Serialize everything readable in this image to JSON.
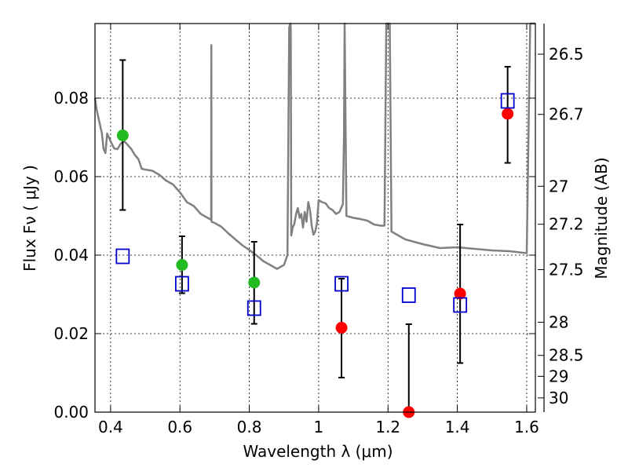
{
  "chart_data": {
    "type": "scatter",
    "xlabel": "Wavelength  λ (μm)",
    "ylabel": "Flux  Fν  ( μJy )",
    "ylabel_right": "Magnitude (AB)",
    "xlim": [
      0.355,
      1.625
    ],
    "ylim": [
      0.0,
      0.099
    ],
    "grid": true,
    "x_ticks": [
      0.4,
      0.6,
      0.8,
      1.0,
      1.2,
      1.4,
      1.6
    ],
    "x_tick_labels": [
      "0.4",
      "0.6",
      "0.8",
      "1",
      "1.2",
      "1.4",
      "1.6"
    ],
    "y_ticks": [
      0.0,
      0.02,
      0.04,
      0.06,
      0.08
    ],
    "y_tick_labels": [
      "0.00",
      "0.02",
      "0.04",
      "0.06",
      "0.08"
    ],
    "right_tick_labels": [
      "26.5",
      "26.7",
      "27",
      "27.2",
      "27.5",
      "28",
      "28.5",
      "29",
      "30"
    ],
    "colors": {
      "model": "#808080",
      "detections": "#22bb22",
      "photometry": "#ff0000",
      "model_photometry": "#0000cc",
      "errorbars": "#000000"
    },
    "series": [
      {
        "marker": "green-circle",
        "points": [
          {
            "x": 0.435,
            "y": 0.0705,
            "ylo": 0.0515,
            "yhi": 0.0897
          },
          {
            "x": 0.606,
            "y": 0.0375,
            "ylo": 0.0303,
            "yhi": 0.0448
          },
          {
            "x": 0.814,
            "y": 0.033,
            "ylo": 0.0225,
            "yhi": 0.0434
          }
        ]
      },
      {
        "marker": "red-circle",
        "points": [
          {
            "x": 1.066,
            "y": 0.0215,
            "ylo": 0.0088,
            "yhi": 0.034
          },
          {
            "x": 1.26,
            "y": 0.0,
            "ylo": 0.0,
            "yhi": 0.0224
          },
          {
            "x": 1.408,
            "y": 0.0302,
            "ylo": 0.0125,
            "yhi": 0.0478
          },
          {
            "x": 1.545,
            "y": 0.076,
            "ylo": 0.0635,
            "yhi": 0.088
          }
        ]
      },
      {
        "marker": "blue-square",
        "points": [
          {
            "x": 0.435,
            "y": 0.0397
          },
          {
            "x": 0.606,
            "y": 0.0327
          },
          {
            "x": 0.814,
            "y": 0.0265
          },
          {
            "x": 1.066,
            "y": 0.0327
          },
          {
            "x": 1.26,
            "y": 0.0298
          },
          {
            "x": 1.408,
            "y": 0.0273
          },
          {
            "x": 1.545,
            "y": 0.0793
          }
        ]
      }
    ],
    "model_spectrum": {
      "x": [
        0.355,
        0.36,
        0.365,
        0.37,
        0.375,
        0.38,
        0.385,
        0.39,
        0.395,
        0.4,
        0.41,
        0.42,
        0.43,
        0.44,
        0.45,
        0.46,
        0.47,
        0.48,
        0.49,
        0.5,
        0.52,
        0.54,
        0.56,
        0.58,
        0.6,
        0.62,
        0.64,
        0.66,
        0.68,
        0.69,
        0.6905,
        0.691,
        0.6915,
        0.7,
        0.72,
        0.74,
        0.76,
        0.78,
        0.8,
        0.82,
        0.84,
        0.86,
        0.88,
        0.9,
        0.91,
        0.915,
        0.918,
        0.919,
        0.9195,
        0.921,
        0.925,
        0.93,
        0.935,
        0.94,
        0.945,
        0.95,
        0.955,
        0.96,
        0.965,
        0.97,
        0.975,
        0.98,
        0.985,
        0.99,
        0.995,
        1.0,
        1.01,
        1.02,
        1.03,
        1.04,
        1.05,
        1.06,
        1.065,
        1.07,
        1.073,
        1.075,
        1.077,
        1.08,
        1.1,
        1.12,
        1.14,
        1.16,
        1.18,
        1.19,
        1.195,
        1.2,
        1.205,
        1.21,
        1.22,
        1.25,
        1.3,
        1.35,
        1.4,
        1.45,
        1.5,
        1.55,
        1.6,
        1.605,
        1.61,
        1.615,
        1.625
      ],
      "y": [
        0.08,
        0.077,
        0.075,
        0.073,
        0.071,
        0.067,
        0.066,
        0.071,
        0.07,
        0.069,
        0.0672,
        0.067,
        0.0685,
        0.069,
        0.068,
        0.067,
        0.0655,
        0.0645,
        0.062,
        0.0618,
        0.0615,
        0.0605,
        0.059,
        0.058,
        0.056,
        0.0535,
        0.0525,
        0.0505,
        0.0495,
        0.049,
        0.0935,
        0.049,
        0.0485,
        0.0482,
        0.0472,
        0.0455,
        0.044,
        0.0425,
        0.0413,
        0.04,
        0.0385,
        0.0375,
        0.0365,
        0.0375,
        0.04,
        0.098,
        0.099,
        0.099,
        0.097,
        0.045,
        0.047,
        0.048,
        0.0505,
        0.052,
        0.0495,
        0.0505,
        0.047,
        0.051,
        0.0485,
        0.0535,
        0.0515,
        0.0475,
        0.0452,
        0.046,
        0.048,
        0.054,
        0.0535,
        0.0532,
        0.052,
        0.0515,
        0.0505,
        0.051,
        0.052,
        0.053,
        0.07,
        0.099,
        0.08,
        0.05,
        0.0495,
        0.0492,
        0.0488,
        0.0478,
        0.0475,
        0.0475,
        0.099,
        0.099,
        0.099,
        0.046,
        0.0455,
        0.044,
        0.0428,
        0.0418,
        0.042,
        0.0416,
        0.0412,
        0.041,
        0.0405,
        0.07,
        0.099,
        0.099,
        0.099
      ]
    }
  }
}
